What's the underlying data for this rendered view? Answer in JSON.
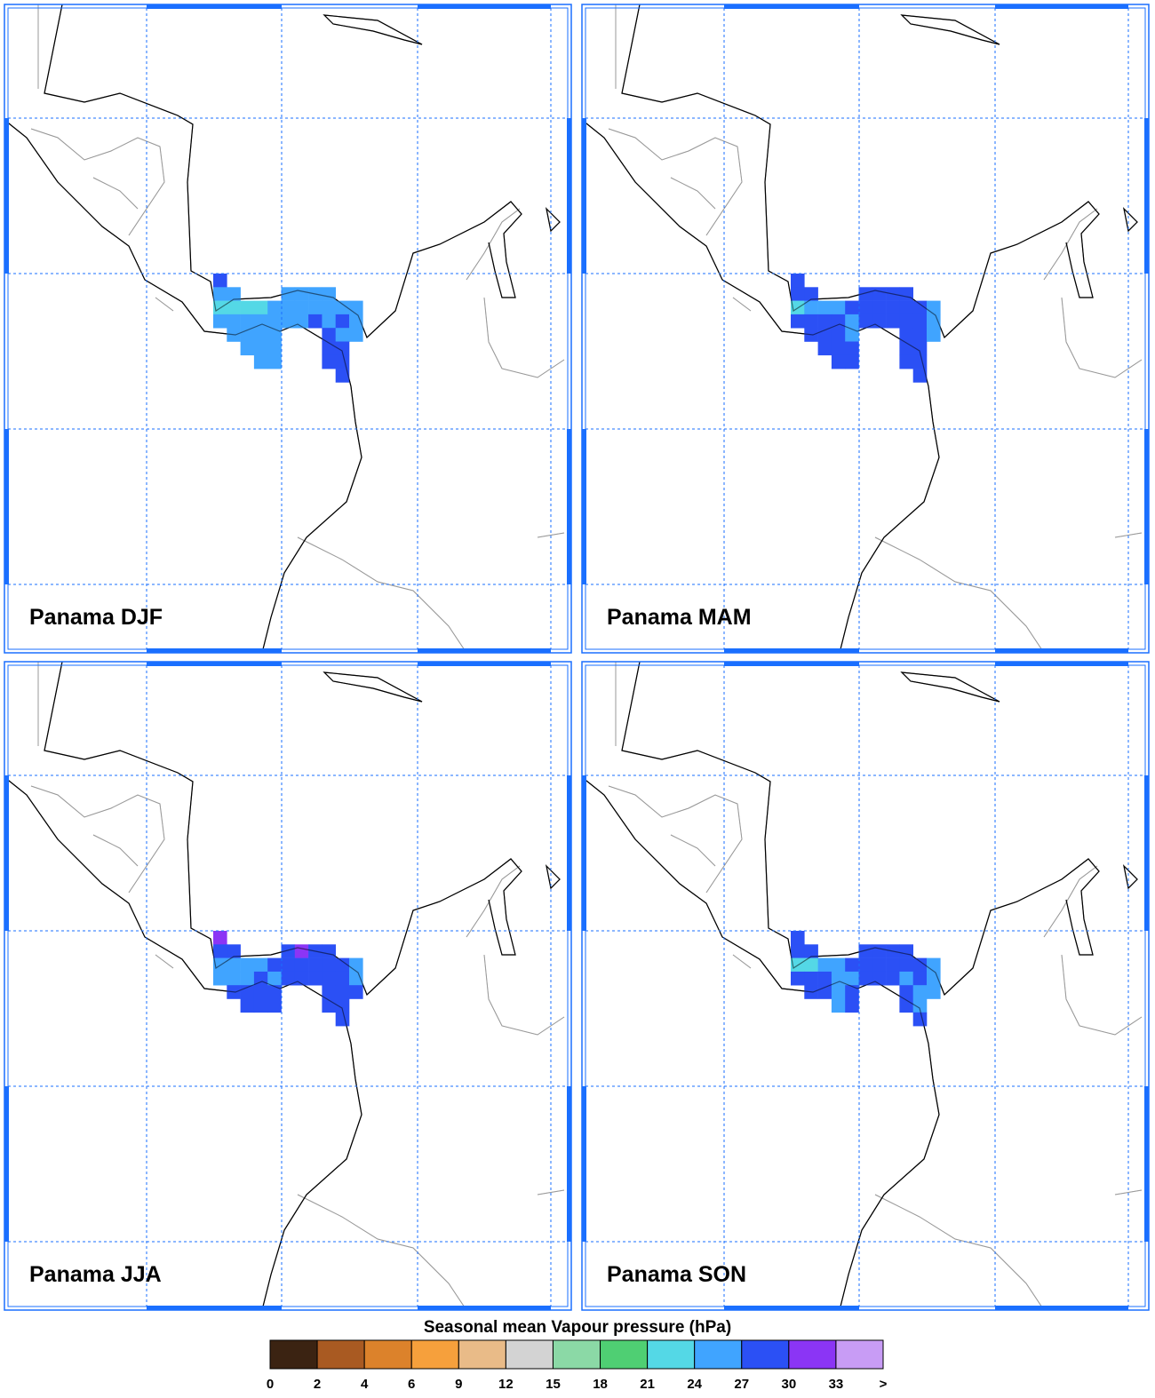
{
  "panels": [
    {
      "label": "Panama DJF",
      "cells": [
        [
          28,
          null,
          null,
          null,
          null,
          null,
          null,
          null,
          null,
          null,
          null,
          null
        ],
        [
          25,
          25,
          null,
          null,
          null,
          25,
          25,
          25,
          25,
          null,
          null,
          null
        ],
        [
          22,
          22,
          22,
          22,
          25,
          25,
          25,
          25,
          25,
          25,
          25,
          null
        ],
        [
          25,
          25,
          25,
          25,
          25,
          25,
          25,
          28,
          25,
          28,
          25,
          null
        ],
        [
          null,
          25,
          25,
          25,
          25,
          null,
          null,
          null,
          28,
          25,
          25,
          null
        ],
        [
          null,
          null,
          25,
          25,
          25,
          null,
          null,
          null,
          28,
          28,
          null,
          null
        ],
        [
          null,
          null,
          null,
          25,
          25,
          null,
          null,
          null,
          28,
          28,
          null,
          null
        ],
        [
          null,
          null,
          null,
          null,
          null,
          null,
          null,
          null,
          null,
          28,
          null,
          null
        ]
      ]
    },
    {
      "label": "Panama MAM",
      "cells": [
        [
          28,
          null,
          null,
          null,
          null,
          null,
          null,
          null,
          null,
          null,
          null,
          null
        ],
        [
          28,
          28,
          null,
          null,
          null,
          28,
          28,
          28,
          28,
          null,
          null,
          null
        ],
        [
          22,
          25,
          25,
          25,
          28,
          28,
          28,
          28,
          28,
          28,
          25,
          null
        ],
        [
          28,
          28,
          28,
          28,
          25,
          28,
          28,
          28,
          28,
          28,
          25,
          null
        ],
        [
          null,
          28,
          28,
          28,
          25,
          null,
          null,
          null,
          28,
          28,
          25,
          null
        ],
        [
          null,
          null,
          28,
          28,
          28,
          null,
          null,
          null,
          28,
          28,
          null,
          null
        ],
        [
          null,
          null,
          null,
          28,
          28,
          null,
          null,
          null,
          28,
          28,
          null,
          null
        ],
        [
          null,
          null,
          null,
          null,
          null,
          null,
          null,
          null,
          null,
          28,
          null,
          null
        ]
      ]
    },
    {
      "label": "Panama JJA",
      "cells": [
        [
          31,
          null,
          null,
          null,
          null,
          null,
          null,
          null,
          null,
          null,
          null,
          null
        ],
        [
          28,
          28,
          null,
          null,
          null,
          28,
          31,
          28,
          28,
          null,
          null,
          null
        ],
        [
          25,
          25,
          25,
          25,
          28,
          28,
          28,
          28,
          28,
          28,
          25,
          null
        ],
        [
          25,
          25,
          25,
          28,
          25,
          28,
          28,
          28,
          28,
          28,
          25,
          null
        ],
        [
          null,
          28,
          28,
          28,
          28,
          null,
          null,
          null,
          28,
          28,
          28,
          null
        ],
        [
          null,
          null,
          28,
          28,
          28,
          null,
          null,
          null,
          28,
          28,
          null,
          null
        ],
        [
          null,
          null,
          null,
          null,
          null,
          null,
          null,
          null,
          null,
          28,
          null,
          null
        ]
      ]
    },
    {
      "label": "Panama SON",
      "cells": [
        [
          28,
          null,
          null,
          null,
          null,
          null,
          null,
          null,
          null,
          null,
          null,
          null
        ],
        [
          28,
          28,
          null,
          null,
          null,
          28,
          28,
          28,
          28,
          null,
          null,
          null
        ],
        [
          22,
          22,
          25,
          25,
          28,
          28,
          28,
          28,
          28,
          28,
          25,
          null
        ],
        [
          28,
          28,
          28,
          25,
          25,
          28,
          28,
          28,
          25,
          28,
          25,
          null
        ],
        [
          null,
          28,
          28,
          25,
          28,
          null,
          null,
          null,
          28,
          25,
          25,
          null
        ],
        [
          null,
          null,
          null,
          25,
          28,
          null,
          null,
          null,
          28,
          25,
          null,
          null
        ],
        [
          null,
          null,
          null,
          null,
          null,
          null,
          null,
          null,
          null,
          28,
          null,
          null
        ]
      ]
    }
  ],
  "colorbar": {
    "title": "Seasonal mean Vapour pressure (hPa)",
    "ticks": [
      0,
      2,
      4,
      6,
      9,
      12,
      15,
      18,
      21,
      24,
      27,
      30,
      33,
      ">"
    ],
    "colors": [
      "#3b2312",
      "#a95a22",
      "#dc822b",
      "#f6a03c",
      "#e9bb88",
      "#d3d3d3",
      "#8bd9a6",
      "#4fcf73",
      "#54d8e6",
      "#40a4ff",
      "#2b50f5",
      "#8b35f5",
      "#c89cf5"
    ]
  }
}
